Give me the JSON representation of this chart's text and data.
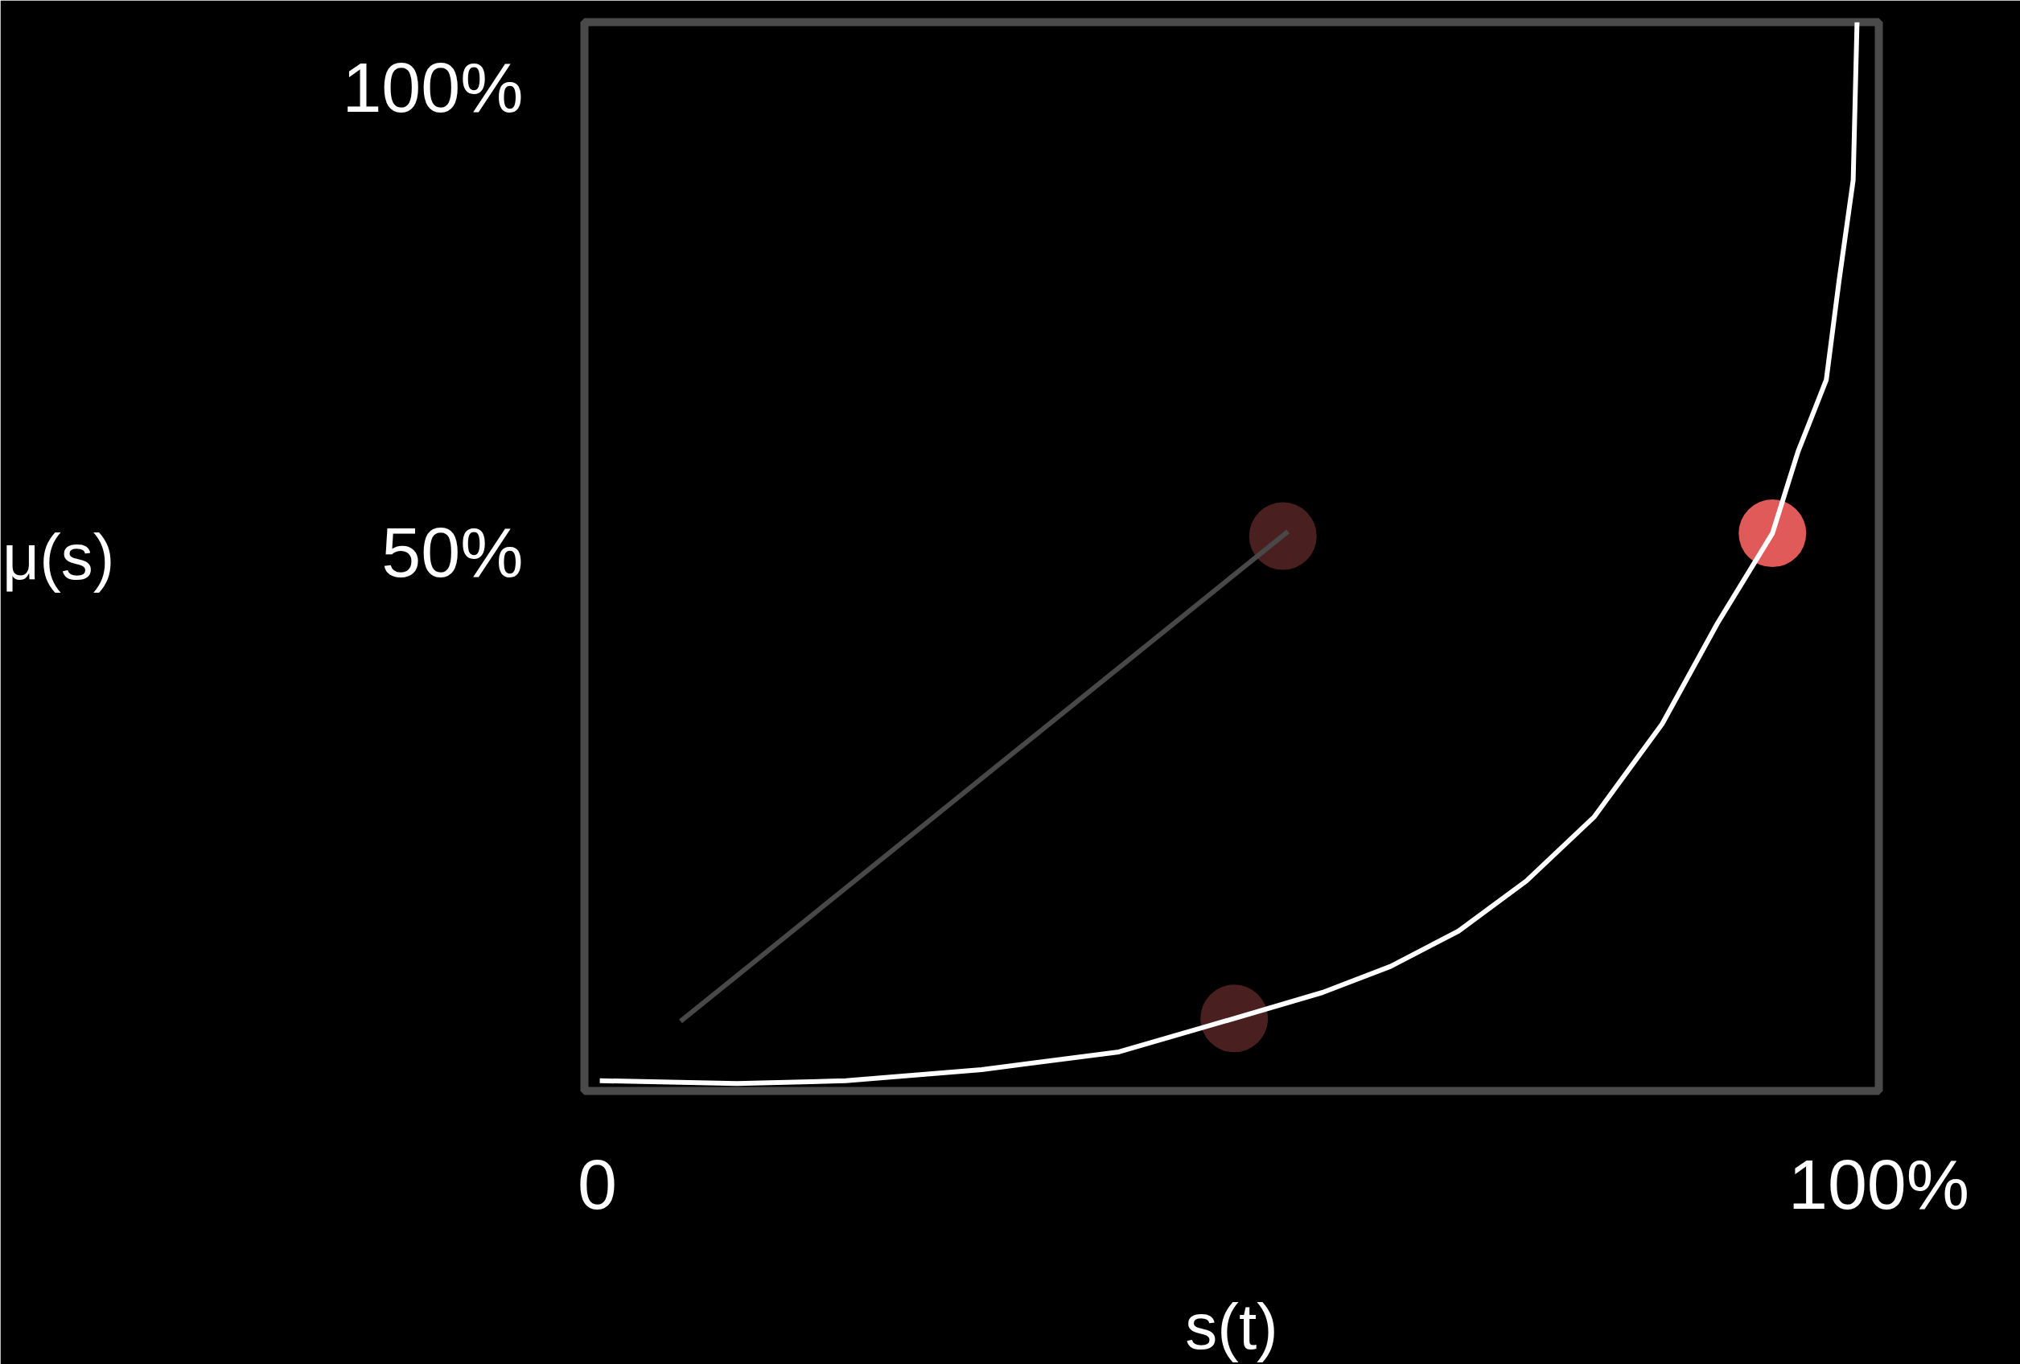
{
  "chart_data": {
    "type": "line",
    "xlabel": "s(t)",
    "ylabel": "μ(s)",
    "xlim": [
      -1,
      100
    ],
    "ylim": [
      -8,
      107
    ],
    "xticks": [
      {
        "value": 0,
        "label": "0"
      },
      {
        "value": 100,
        "label": "100%"
      }
    ],
    "yticks": [
      {
        "value": 50,
        "label": "50%"
      },
      {
        "value": 100,
        "label": "100%"
      }
    ],
    "grid": false,
    "series": [
      {
        "color": "#ffffff",
        "marker": "none",
        "x": [
          0.2,
          10.9,
          19.4,
          30,
          40.7,
          49.7,
          56.6,
          61.9,
          67.2,
          72.5,
          77.8,
          83.1,
          87.4,
          91.7,
          93.7,
          95.9,
          96.9,
          98,
          98.3
        ],
        "values": [
          -6.9,
          -7.2,
          -6.9,
          -5.7,
          -3.8,
          -0.2,
          2.6,
          5.4,
          9.2,
          14.6,
          21.5,
          31.5,
          42.3,
          52,
          60.8,
          68.5,
          79.2,
          90,
          107
        ]
      },
      {
        "color": "#484848",
        "marker": "none",
        "x": [
          6.5,
          53.9
        ],
        "values": [
          -0.5,
          52.2
        ]
      },
      {
        "type": "scatter",
        "color": "#4a1f1f",
        "marker": "circle",
        "x": [
          53.5,
          49.7
        ],
        "values": [
          51.7,
          -0.2
        ]
      },
      {
        "type": "scatter",
        "color": "#e05a5a",
        "marker": "circle",
        "x": [
          91.7
        ],
        "values": [
          52
        ]
      }
    ]
  }
}
